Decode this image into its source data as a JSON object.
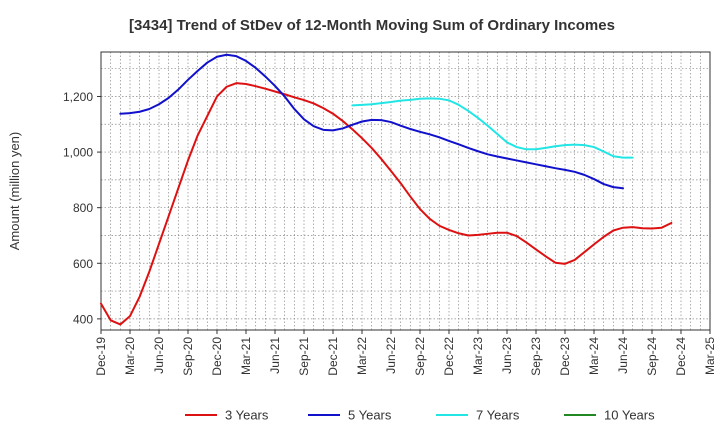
{
  "chart_data": {
    "type": "line",
    "title": "[3434]  Trend of StDev of 12-Month Moving Sum of Ordinary Incomes",
    "xlabel": "",
    "ylabel": "Amount (million yen)",
    "ylim": [
      360,
      1360
    ],
    "yticks": [
      400,
      600,
      800,
      1000,
      1200
    ],
    "ytick_labels": [
      "400",
      "600",
      "800",
      "1,000",
      "1,200"
    ],
    "x_range_months": [
      0,
      63
    ],
    "xticks": [
      {
        "label": "Dec-19",
        "month": 0
      },
      {
        "label": "Mar-20",
        "month": 3
      },
      {
        "label": "Jun-20",
        "month": 6
      },
      {
        "label": "Sep-20",
        "month": 9
      },
      {
        "label": "Dec-20",
        "month": 12
      },
      {
        "label": "Mar-21",
        "month": 15
      },
      {
        "label": "Jun-21",
        "month": 18
      },
      {
        "label": "Sep-21",
        "month": 21
      },
      {
        "label": "Dec-21",
        "month": 24
      },
      {
        "label": "Mar-22",
        "month": 27
      },
      {
        "label": "Jun-22",
        "month": 30
      },
      {
        "label": "Sep-22",
        "month": 33
      },
      {
        "label": "Dec-22",
        "month": 36
      },
      {
        "label": "Mar-23",
        "month": 39
      },
      {
        "label": "Jun-23",
        "month": 42
      },
      {
        "label": "Sep-23",
        "month": 45
      },
      {
        "label": "Dec-23",
        "month": 48
      },
      {
        "label": "Mar-24",
        "month": 51
      },
      {
        "label": "Jun-24",
        "month": 54
      },
      {
        "label": "Sep-24",
        "month": 57
      },
      {
        "label": "Dec-24",
        "month": 60
      },
      {
        "label": "Mar-25",
        "month": 63
      }
    ],
    "grid": true,
    "legend_position": "bottom",
    "series": [
      {
        "name": "3 Years",
        "color": "#dd1111",
        "start_month": 0,
        "values": [
          455,
          395,
          380,
          410,
          480,
          570,
          670,
          770,
          870,
          970,
          1060,
          1130,
          1200,
          1235,
          1248,
          1245,
          1237,
          1228,
          1218,
          1208,
          1197,
          1187,
          1175,
          1158,
          1138,
          1112,
          1082,
          1050,
          1015,
          975,
          932,
          888,
          840,
          795,
          760,
          735,
          720,
          708,
          700,
          702,
          706,
          710,
          710,
          698,
          675,
          650,
          625,
          602,
          598,
          612,
          640,
          668,
          695,
          718,
          728,
          730,
          726,
          725,
          728,
          745
        ]
      },
      {
        "name": "5 Years",
        "color": "#1111cc",
        "start_month": 2,
        "values": [
          1138,
          1140,
          1145,
          1155,
          1172,
          1195,
          1225,
          1260,
          1292,
          1322,
          1343,
          1350,
          1345,
          1328,
          1303,
          1272,
          1238,
          1200,
          1155,
          1118,
          1093,
          1080,
          1078,
          1085,
          1098,
          1110,
          1116,
          1115,
          1108,
          1095,
          1083,
          1073,
          1064,
          1053,
          1040,
          1028,
          1015,
          1003,
          992,
          984,
          977,
          970,
          963,
          956,
          949,
          942,
          936,
          929,
          918,
          903,
          885,
          874,
          870
        ]
      },
      {
        "name": "7 Years",
        "color": "#22e5e5",
        "start_month": 26,
        "values": [
          1168,
          1170,
          1172,
          1176,
          1180,
          1185,
          1188,
          1192,
          1193,
          1192,
          1186,
          1170,
          1148,
          1123,
          1095,
          1065,
          1035,
          1018,
          1010,
          1010,
          1015,
          1021,
          1025,
          1027,
          1025,
          1018,
          1002,
          985,
          980,
          980
        ]
      },
      {
        "name": "10 Years",
        "color": "#228822",
        "start_month": null,
        "values": []
      }
    ]
  }
}
